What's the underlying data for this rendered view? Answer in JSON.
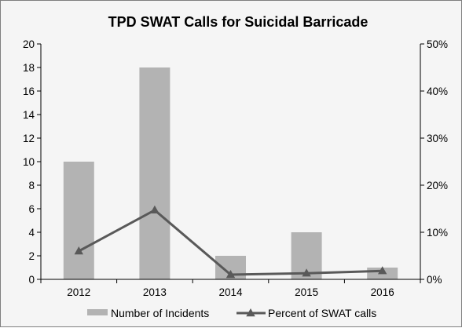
{
  "chart_data": {
    "type": "bar",
    "title": "TPD SWAT Calls for Suicidal Barricade",
    "categories": [
      "2012",
      "2013",
      "2014",
      "2015",
      "2016"
    ],
    "series": [
      {
        "name": "Number of Incidents",
        "type": "bar",
        "axis": "left",
        "values": [
          10,
          18,
          2,
          4,
          1
        ],
        "color": "#b3b3b3"
      },
      {
        "name": "Percent of SWAT calls",
        "type": "line",
        "axis": "right",
        "marker": "triangle",
        "values": [
          6,
          14.7,
          1,
          1.3,
          1.8
        ],
        "color": "#595959"
      }
    ],
    "y_left": {
      "min": 0,
      "max": 20,
      "step": 2,
      "ticks": [
        "0",
        "2",
        "4",
        "6",
        "8",
        "10",
        "12",
        "14",
        "16",
        "18",
        "20"
      ]
    },
    "y_right": {
      "min": 0,
      "max": 50,
      "step": 10,
      "unit": "%",
      "ticks": [
        "0%",
        "10%",
        "20%",
        "30%",
        "40%",
        "50%"
      ]
    },
    "grid": false,
    "legend_position": "bottom"
  }
}
